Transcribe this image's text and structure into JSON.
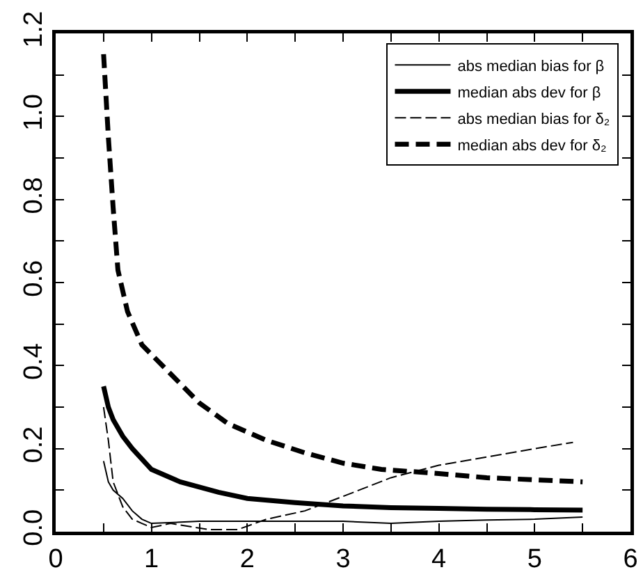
{
  "chart_data": {
    "type": "line",
    "xlim": [
      0,
      6
    ],
    "xticks": [
      0,
      {
        "value": 0.5,
        "label": null
      },
      1,
      {
        "value": 1.5,
        "label": null
      },
      2,
      {
        "value": 2.5,
        "label": null
      },
      3,
      {
        "value": 3.5,
        "label": null
      },
      4,
      {
        "value": 4.5,
        "label": null
      },
      5,
      {
        "value": 5.5,
        "label": null
      },
      6
    ],
    "ylim": [
      0,
      1.2
    ],
    "yticks": [
      {
        "value": 0,
        "label": "0.0"
      },
      {
        "value": 0.1,
        "label": null
      },
      0.2,
      {
        "value": 0.3,
        "label": null
      },
      0.4,
      {
        "value": 0.5,
        "label": null
      },
      0.6,
      {
        "value": 0.7,
        "label": null
      },
      0.8,
      {
        "value": 0.9,
        "label": null
      },
      {
        "value": 1,
        "label": "1.0"
      },
      {
        "value": 1.1,
        "label": null
      },
      1.2
    ],
    "grid": false,
    "legend": "top right",
    "series": [
      {
        "name": "abs median bias for β",
        "color": "#000000",
        "line_style": "solid",
        "x": [
          0.5,
          0.55,
          0.6,
          0.7,
          0.8,
          0.9,
          1.0,
          1.5,
          2.0,
          2.5,
          3.0,
          3.5,
          4.0,
          4.5,
          5.0,
          5.5
        ],
        "values": [
          0.17,
          0.12,
          0.1,
          0.08,
          0.05,
          0.03,
          0.02,
          0.025,
          0.025,
          0.025,
          0.025,
          0.02,
          0.025,
          0.028,
          0.03,
          0.035
        ]
      },
      {
        "name": "median abs dev for β",
        "color": "#000000",
        "line_style": "solid",
        "x": [
          0.5,
          0.55,
          0.6,
          0.7,
          0.8,
          1.0,
          1.3,
          1.7,
          2.0,
          2.5,
          3.0,
          3.5,
          4.0,
          4.5,
          5.0,
          5.5
        ],
        "values": [
          0.35,
          0.3,
          0.27,
          0.23,
          0.2,
          0.15,
          0.12,
          0.095,
          0.08,
          0.07,
          0.062,
          0.058,
          0.056,
          0.054,
          0.053,
          0.052
        ]
      },
      {
        "name": "abs median bias for δ₂",
        "color": "#000000",
        "line_style": "dashed",
        "x": [
          0.5,
          0.55,
          0.6,
          0.7,
          0.8,
          0.9,
          1.0,
          1.2,
          1.6,
          1.9,
          2.2,
          2.6,
          3.0,
          3.5,
          4.0,
          4.5,
          5.0,
          5.4
        ],
        "values": [
          0.3,
          0.22,
          0.12,
          0.06,
          0.03,
          0.02,
          0.01,
          0.02,
          0.005,
          0.005,
          0.03,
          0.05,
          0.085,
          0.13,
          0.16,
          0.18,
          0.2,
          0.215
        ]
      },
      {
        "name": "median abs dev for δ₂",
        "color": "#000000",
        "line_style": "dashed",
        "x": [
          0.5,
          0.55,
          0.6,
          0.65,
          0.75,
          0.9,
          1.2,
          1.5,
          1.8,
          2.2,
          2.6,
          3.0,
          3.4,
          4.0,
          4.5,
          5.0,
          5.5
        ],
        "values": [
          1.15,
          0.95,
          0.78,
          0.63,
          0.53,
          0.45,
          0.38,
          0.31,
          0.26,
          0.22,
          0.19,
          0.165,
          0.15,
          0.14,
          0.13,
          0.125,
          0.12
        ]
      }
    ]
  }
}
